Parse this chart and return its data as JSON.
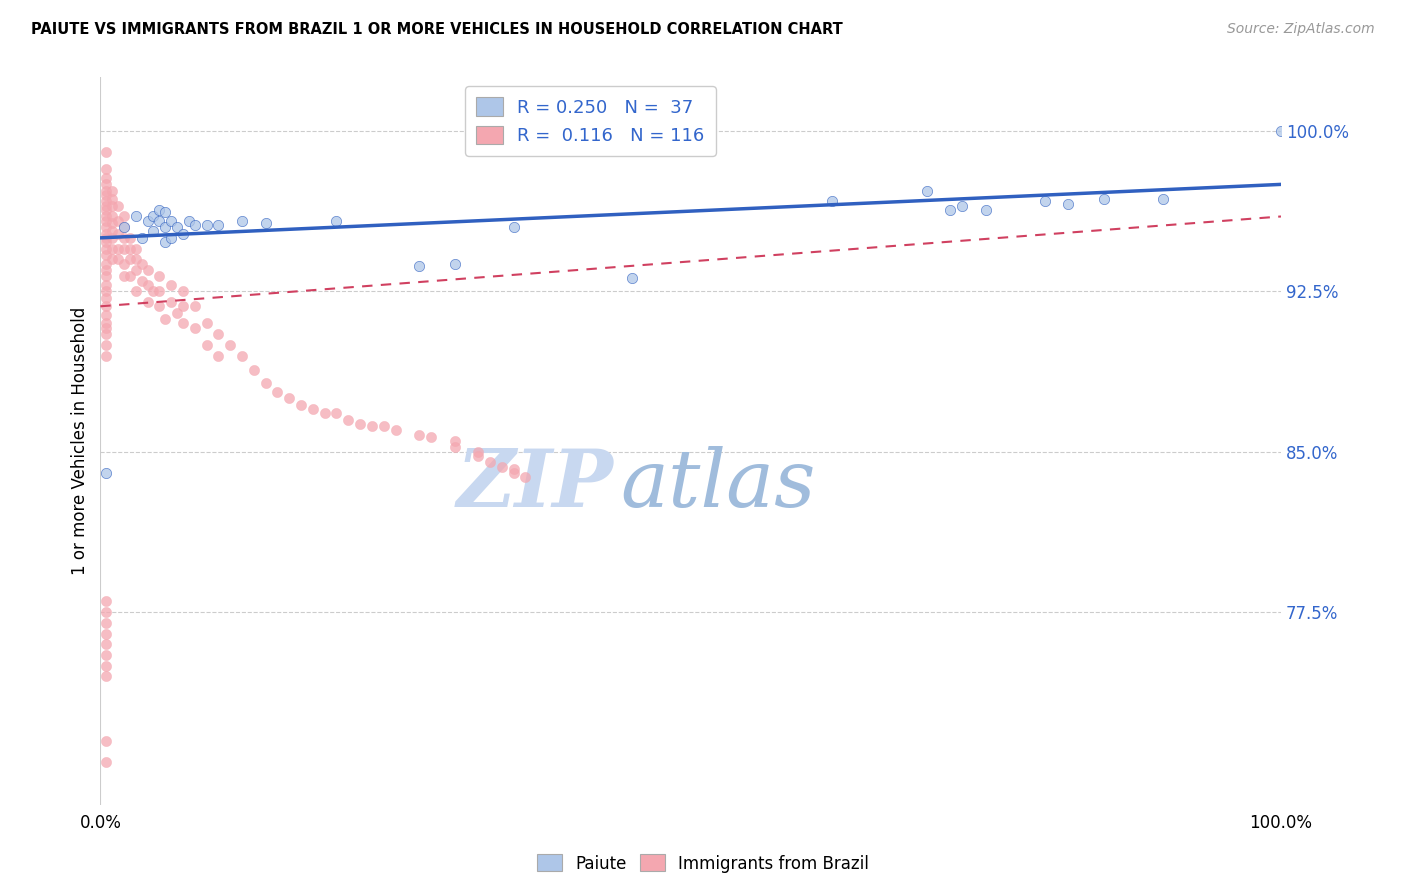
{
  "title": "PAIUTE VS IMMIGRANTS FROM BRAZIL 1 OR MORE VEHICLES IN HOUSEHOLD CORRELATION CHART",
  "source": "Source: ZipAtlas.com",
  "ylabel": "1 or more Vehicles in Household",
  "xlim": [
    0.0,
    1.0
  ],
  "ylim": [
    0.685,
    1.025
  ],
  "yticks": [
    0.775,
    0.85,
    0.925,
    1.0
  ],
  "ytick_labels": [
    "77.5%",
    "85.0%",
    "92.5%",
    "100.0%"
  ],
  "paiute_R": "0.250",
  "paiute_N": "37",
  "brazil_R": "0.116",
  "brazil_N": "116",
  "paiute_color": "#aec6e8",
  "brazil_color": "#f4a7b0",
  "paiute_line_color": "#3060c0",
  "brazil_line_color": "#d04060",
  "watermark_zip": "ZIP",
  "watermark_atlas": "atlas",
  "paiute_x": [
    0.005,
    0.02,
    0.03,
    0.035,
    0.04,
    0.045,
    0.045,
    0.05,
    0.05,
    0.055,
    0.055,
    0.055,
    0.06,
    0.06,
    0.065,
    0.07,
    0.075,
    0.08,
    0.09,
    0.1,
    0.12,
    0.14,
    0.2,
    0.27,
    0.3,
    0.35,
    0.45,
    0.62,
    0.7,
    0.72,
    0.73,
    0.75,
    0.8,
    0.82,
    0.85,
    0.9,
    1.0
  ],
  "paiute_y": [
    0.84,
    0.955,
    0.96,
    0.95,
    0.958,
    0.953,
    0.96,
    0.958,
    0.963,
    0.948,
    0.955,
    0.962,
    0.95,
    0.958,
    0.955,
    0.952,
    0.958,
    0.956,
    0.956,
    0.956,
    0.958,
    0.957,
    0.958,
    0.937,
    0.938,
    0.955,
    0.931,
    0.967,
    0.972,
    0.963,
    0.965,
    0.963,
    0.967,
    0.966,
    0.968,
    0.968,
    1.0
  ],
  "brazil_x": [
    0.005,
    0.005,
    0.005,
    0.005,
    0.005,
    0.005,
    0.005,
    0.005,
    0.005,
    0.005,
    0.005,
    0.005,
    0.005,
    0.005,
    0.005,
    0.005,
    0.005,
    0.005,
    0.005,
    0.005,
    0.005,
    0.005,
    0.005,
    0.005,
    0.005,
    0.005,
    0.005,
    0.005,
    0.005,
    0.005,
    0.01,
    0.01,
    0.01,
    0.01,
    0.01,
    0.01,
    0.01,
    0.01,
    0.01,
    0.015,
    0.015,
    0.015,
    0.015,
    0.015,
    0.02,
    0.02,
    0.02,
    0.02,
    0.02,
    0.02,
    0.025,
    0.025,
    0.025,
    0.025,
    0.03,
    0.03,
    0.03,
    0.03,
    0.035,
    0.035,
    0.04,
    0.04,
    0.04,
    0.045,
    0.05,
    0.05,
    0.05,
    0.055,
    0.06,
    0.06,
    0.065,
    0.07,
    0.07,
    0.07,
    0.08,
    0.08,
    0.09,
    0.09,
    0.1,
    0.1,
    0.11,
    0.12,
    0.13,
    0.14,
    0.15,
    0.16,
    0.17,
    0.18,
    0.19,
    0.2,
    0.21,
    0.22,
    0.23,
    0.24,
    0.25,
    0.27,
    0.28,
    0.3,
    0.3,
    0.32,
    0.32,
    0.33,
    0.34,
    0.35,
    0.35,
    0.36,
    0.005,
    0.005,
    0.005,
    0.005,
    0.005,
    0.005,
    0.005,
    0.005,
    0.005,
    0.005
  ],
  "brazil_y": [
    0.99,
    0.982,
    0.978,
    0.975,
    0.972,
    0.97,
    0.967,
    0.965,
    0.963,
    0.96,
    0.958,
    0.955,
    0.952,
    0.95,
    0.948,
    0.945,
    0.942,
    0.938,
    0.935,
    0.932,
    0.928,
    0.925,
    0.922,
    0.918,
    0.914,
    0.91,
    0.908,
    0.905,
    0.9,
    0.895,
    0.972,
    0.968,
    0.965,
    0.96,
    0.957,
    0.953,
    0.95,
    0.945,
    0.94,
    0.965,
    0.958,
    0.952,
    0.945,
    0.94,
    0.96,
    0.955,
    0.95,
    0.945,
    0.938,
    0.932,
    0.95,
    0.945,
    0.94,
    0.932,
    0.945,
    0.94,
    0.935,
    0.925,
    0.938,
    0.93,
    0.935,
    0.928,
    0.92,
    0.925,
    0.932,
    0.925,
    0.918,
    0.912,
    0.928,
    0.92,
    0.915,
    0.925,
    0.918,
    0.91,
    0.918,
    0.908,
    0.91,
    0.9,
    0.905,
    0.895,
    0.9,
    0.895,
    0.888,
    0.882,
    0.878,
    0.875,
    0.872,
    0.87,
    0.868,
    0.868,
    0.865,
    0.863,
    0.862,
    0.862,
    0.86,
    0.858,
    0.857,
    0.855,
    0.852,
    0.85,
    0.848,
    0.845,
    0.843,
    0.842,
    0.84,
    0.838,
    0.78,
    0.775,
    0.77,
    0.765,
    0.76,
    0.755,
    0.75,
    0.745,
    0.715,
    0.705
  ]
}
